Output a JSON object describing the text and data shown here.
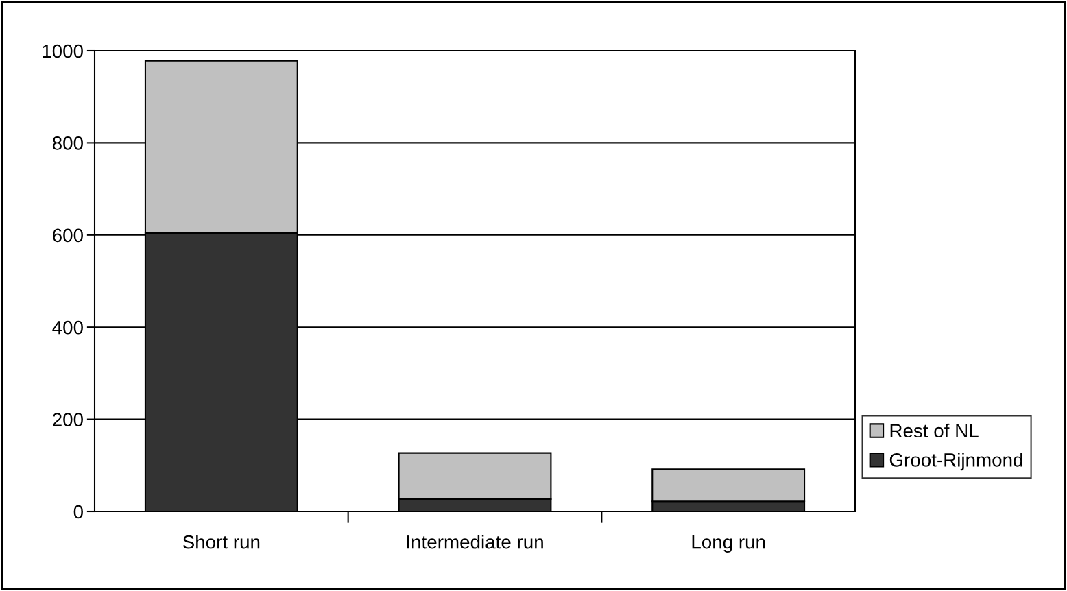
{
  "chart_data": {
    "type": "bar",
    "stacked": true,
    "categories": [
      "Short run",
      "Intermediate run",
      "Long run"
    ],
    "series": [
      {
        "name": "Groot-Rijnmond",
        "color": "#333333",
        "values": [
          604,
          27,
          22
        ]
      },
      {
        "name": "Rest of NL",
        "color": "#c0c0c0",
        "values": [
          374,
          100,
          70
        ]
      }
    ],
    "ylim": [
      0,
      1000
    ],
    "yticks": [
      0,
      200,
      400,
      600,
      800,
      1000
    ],
    "grid": "y",
    "legend": "right"
  }
}
